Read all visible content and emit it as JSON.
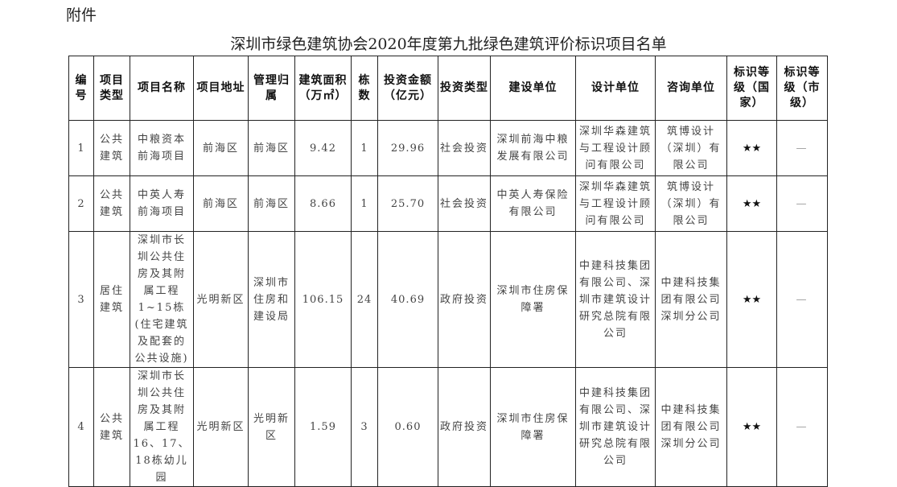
{
  "attachment": "附件",
  "title": "深圳市绿色建筑协会2020年度第九批绿色建筑评价标识项目名单",
  "headers": [
    "编号",
    "项目类型",
    "项目名称",
    "项目地址",
    "管理归属",
    "建筑面积（万㎡）",
    "栋数",
    "投资金额（亿元）",
    "投资类型",
    "建设单位",
    "设计单位",
    "咨询单位",
    "标识等级（国家）",
    "标识等级（市级）"
  ],
  "rows": [
    [
      "1",
      "公共建筑",
      "中粮资本前海项目",
      "前海区",
      "前海区",
      "9.42",
      "1",
      "29.96",
      "社会投资",
      "深圳前海中粮发展有限公司",
      "深圳华森建筑与工程设计顾问有限公司",
      "筑博设计（深圳）有限公司",
      "★★",
      "—"
    ],
    [
      "2",
      "公共建筑",
      "中英人寿前海项目",
      "前海区",
      "前海区",
      "8.66",
      "1",
      "25.70",
      "社会投资",
      "中英人寿保险有限公司",
      "深圳华森建筑与工程设计顾问有限公司",
      "筑博设计（深圳）有限公司",
      "★★",
      "—"
    ],
    [
      "3",
      "居住建筑",
      "深圳市长圳公共住房及其附属工程1~15栋(住宅建筑及配套的公共设施)",
      "光明新区",
      "深圳市住房和建设局",
      "106.15",
      "24",
      "40.69",
      "政府投资",
      "深圳市住房保障署",
      "中建科技集团有限公司、深圳市建筑设计研究总院有限公司",
      "中建科技集团有限公司深圳分公司",
      "★★",
      "—"
    ],
    [
      "4",
      "公共建筑",
      "深圳市长圳公共住房及其附属工程16、17、18栋幼儿园",
      "光明新区",
      "光明新区",
      "1.59",
      "3",
      "0.60",
      "政府投资",
      "深圳市住房保障署",
      "中建科技集团有限公司、深圳市建筑设计研究总院有限公司",
      "中建科技集团有限公司深圳分公司",
      "★★",
      "—"
    ]
  ]
}
